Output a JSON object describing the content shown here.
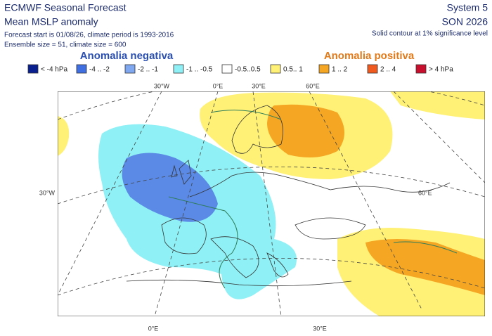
{
  "header": {
    "title": "ECMWF Seasonal Forecast",
    "subtitle": "Mean MSLP anomaly",
    "info_1": "Forecast start is 01/08/26, climate period is 1993-2016",
    "info_2": "Ensemble size = 51, climate size = 600",
    "system": "System 5",
    "season": "SON 2026",
    "note": "Solid contour at 1% significance level"
  },
  "legend": {
    "negative_title": "Anomalia negativa",
    "positive_title": "Anomalia positiva",
    "items": [
      {
        "label": "< -4 hPa",
        "color": "#0a1f8f"
      },
      {
        "label": "-4 .. -2",
        "color": "#3f6fe0"
      },
      {
        "label": "-2 .. -1",
        "color": "#7fa8f0"
      },
      {
        "label": "-1 .. -0.5",
        "color": "#8ff0f5"
      },
      {
        "label": "-0.5..0.5",
        "color": "#ffffff"
      },
      {
        "label": "0.5.. 1",
        "color": "#fff176"
      },
      {
        "label": "1 .. 2",
        "color": "#f5a623"
      },
      {
        "label": "2 .. 4",
        "color": "#f05a1e"
      },
      {
        "label": "> 4 hPa",
        "color": "#c8102e"
      }
    ]
  },
  "map": {
    "top_labels": [
      "30°W",
      "0°E",
      "30°E",
      "60°E"
    ],
    "left_label": "30°W",
    "right_label": "60°E",
    "bottom_labels": [
      "0°E",
      "30°E"
    ]
  }
}
